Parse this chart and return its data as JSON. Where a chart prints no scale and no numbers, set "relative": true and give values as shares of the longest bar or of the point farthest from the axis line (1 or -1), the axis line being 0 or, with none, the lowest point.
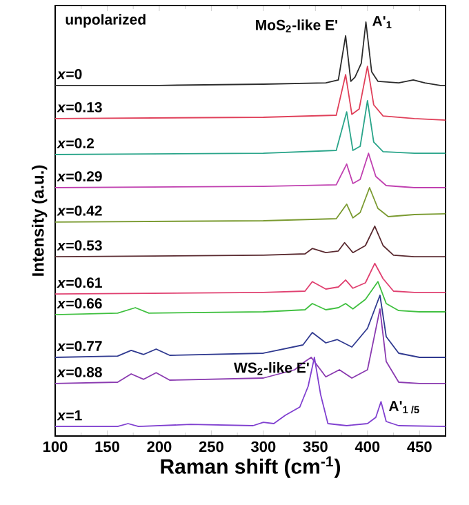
{
  "chart_data": {
    "type": "line",
    "relative": true,
    "xlabel": "Raman shift (cm$^{-1}$)",
    "ylabel": "Intensity (a.u.)",
    "xlim": [
      100,
      475
    ],
    "xticks": [
      100,
      150,
      200,
      250,
      300,
      350,
      400,
      450
    ],
    "annotations": [
      "unpolarized",
      {
        "text": "MoS$_{2}$-like E'",
        "x": 379,
        "y": 0.967
      },
      {
        "text": "A'$_{1}$",
        "x": 398.5,
        "y": 1.0
      },
      {
        "text": "WS$_{2}$-like E'",
        "x": 349,
        "y": 0.19
      },
      {
        "text": "A'$_{1 /5}$",
        "x": 413,
        "y": 0.083
      }
    ],
    "series": [
      {
        "name": "*x*=0",
        "color": "#2b2b2b",
        "x": [
          100,
          200,
          300,
          360,
          372,
          379,
          384,
          388,
          394,
          398.5,
          404,
          410,
          430,
          444,
          455,
          470,
          475
        ],
        "values": [
          0.847,
          0.847,
          0.85,
          0.853,
          0.86,
          0.967,
          0.857,
          0.867,
          0.9,
          1.0,
          0.88,
          0.857,
          0.853,
          0.86,
          0.853,
          0.847,
          0.847
        ]
      },
      {
        "name": "*x*=0.13",
        "color": "#e0405a",
        "x": [
          100,
          300,
          370,
          379,
          385,
          392,
          400,
          406,
          415,
          445,
          475
        ],
        "values": [
          0.767,
          0.77,
          0.775,
          0.873,
          0.777,
          0.79,
          0.893,
          0.8,
          0.773,
          0.767,
          0.763
        ]
      },
      {
        "name": "*x*=0.2",
        "color": "#2aa58a",
        "x": [
          100,
          300,
          370,
          380,
          386,
          393,
          400,
          406,
          415,
          445,
          475
        ],
        "values": [
          0.68,
          0.683,
          0.69,
          0.783,
          0.69,
          0.7,
          0.81,
          0.71,
          0.687,
          0.683,
          0.683
        ]
      },
      {
        "name": "*x*=0.29",
        "color": "#c040b0",
        "x": [
          100,
          300,
          370,
          380,
          386,
          393,
          401,
          408,
          418,
          445,
          475
        ],
        "values": [
          0.6,
          0.603,
          0.607,
          0.657,
          0.61,
          0.62,
          0.683,
          0.627,
          0.605,
          0.6,
          0.6
        ]
      },
      {
        "name": "*x*=0.42",
        "color": "#7a9a30",
        "x": [
          100,
          300,
          370,
          380,
          386,
          393,
          402,
          410,
          420,
          445,
          475
        ],
        "values": [
          0.517,
          0.52,
          0.525,
          0.56,
          0.527,
          0.54,
          0.6,
          0.55,
          0.53,
          0.535,
          0.537
        ]
      },
      {
        "name": "*x*=0.53",
        "color": "#5a2a30",
        "x": [
          100,
          300,
          340,
          347,
          360,
          372,
          378,
          386,
          398,
          407,
          415,
          425,
          445,
          475
        ],
        "values": [
          0.433,
          0.437,
          0.44,
          0.453,
          0.443,
          0.447,
          0.467,
          0.443,
          0.46,
          0.507,
          0.46,
          0.437,
          0.433,
          0.433
        ]
      },
      {
        "name": "*x*=0.61",
        "color": "#e04070",
        "x": [
          100,
          300,
          340,
          347,
          360,
          372,
          379,
          386,
          398,
          407,
          415,
          425,
          445,
          475
        ],
        "values": [
          0.343,
          0.347,
          0.35,
          0.373,
          0.355,
          0.36,
          0.377,
          0.357,
          0.37,
          0.417,
          0.38,
          0.35,
          0.347,
          0.347
        ]
      },
      {
        "name": "*x*=0.66",
        "color": "#40c040",
        "x": [
          100,
          160,
          177,
          190,
          300,
          340,
          347,
          360,
          372,
          379,
          386,
          398,
          410,
          418,
          430,
          450,
          475
        ],
        "values": [
          0.293,
          0.297,
          0.31,
          0.297,
          0.3,
          0.305,
          0.32,
          0.305,
          0.31,
          0.32,
          0.307,
          0.33,
          0.373,
          0.32,
          0.303,
          0.3,
          0.3
        ]
      },
      {
        "name": "*x*=0.77",
        "color": "#303a90",
        "x": [
          100,
          160,
          173,
          185,
          197,
          210,
          300,
          338,
          347,
          360,
          371,
          385,
          400,
          412,
          418,
          430,
          450,
          475
        ],
        "values": [
          0.19,
          0.193,
          0.207,
          0.197,
          0.21,
          0.195,
          0.2,
          0.22,
          0.25,
          0.225,
          0.233,
          0.215,
          0.26,
          0.34,
          0.24,
          0.2,
          0.19,
          0.19
        ]
      },
      {
        "name": "*x*=0.88",
        "color": "#8a3ab0",
        "x": [
          100,
          160,
          173,
          185,
          197,
          210,
          300,
          330,
          340,
          346,
          360,
          373,
          385,
          400,
          412,
          418,
          430,
          450,
          475
        ],
        "values": [
          0.127,
          0.13,
          0.15,
          0.137,
          0.153,
          0.135,
          0.14,
          0.16,
          0.18,
          0.19,
          0.143,
          0.16,
          0.14,
          0.16,
          0.307,
          0.18,
          0.13,
          0.127,
          0.127
        ]
      },
      {
        "name": "*x*=1",
        "color": "#8040d0",
        "x": [
          100,
          160,
          170,
          180,
          230,
          290,
          300,
          310,
          321,
          335,
          343,
          349,
          355,
          362,
          380,
          400,
          408,
          413,
          418,
          430,
          475
        ],
        "values": [
          0.023,
          0.023,
          0.03,
          0.023,
          0.028,
          0.025,
          0.033,
          0.03,
          0.05,
          0.07,
          0.12,
          0.19,
          0.1,
          0.03,
          0.025,
          0.03,
          0.045,
          0.083,
          0.035,
          0.025,
          0.023
        ]
      }
    ]
  }
}
